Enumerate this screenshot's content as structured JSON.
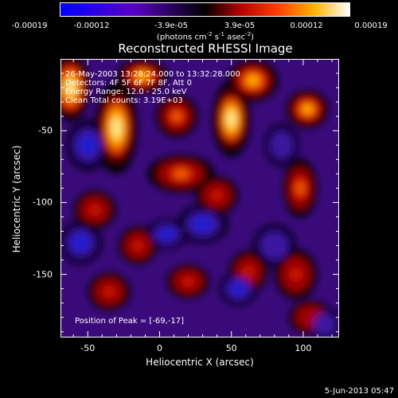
{
  "chart_data": {
    "type": "heatmap",
    "title": "Reconstructed RHESSI Image",
    "xlabel": "Heliocentric X (arcsec)",
    "ylabel": "Heliocentric Y (arcsec)",
    "xlim": [
      -69,
      125
    ],
    "ylim": [
      -194,
      0
    ],
    "x_ticks": [
      -50,
      0,
      50,
      100
    ],
    "y_ticks": [
      -50,
      -100,
      -150
    ],
    "colorbar": {
      "ticks": [
        "-0.00019",
        "-0.00012",
        "-3.9e-05",
        "3.9e-05",
        "0.00012",
        "0.00019"
      ],
      "unit_prefix": "(photons cm",
      "unit_sup1": "-2",
      "unit_mid": " s",
      "unit_sup2": "-1",
      "unit_mid2": " asec",
      "unit_sup3": "-2",
      "unit_suffix": ")",
      "range": [
        -0.00019,
        0.00019
      ]
    },
    "info": [
      "26-May-2003 13:28:24.000 to 13:32:28.000",
      "Detectors: 4F 5F 6F 7F 8F, Att 0",
      "Energy Range: 12.0 - 25.0 keV",
      "Clean     Total counts: 3.19E+03"
    ],
    "peak_note": "Position of Peak = [-69,-17]",
    "peak": [
      -69,
      -17
    ],
    "sources": [
      {
        "x": -62,
        "y": -20,
        "a": 1.0,
        "sx": 9,
        "sy": 16
      },
      {
        "x": -30,
        "y": -48,
        "a": 0.95,
        "sx": 10,
        "sy": 22
      },
      {
        "x": -12,
        "y": -12,
        "a": 0.8,
        "sx": 12,
        "sy": 8
      },
      {
        "x": 12,
        "y": -40,
        "a": 0.7,
        "sx": 10,
        "sy": 10
      },
      {
        "x": 50,
        "y": -42,
        "a": 0.98,
        "sx": 9,
        "sy": 18
      },
      {
        "x": 65,
        "y": -15,
        "a": 0.85,
        "sx": 12,
        "sy": 10
      },
      {
        "x": 103,
        "y": -35,
        "a": 0.8,
        "sx": 10,
        "sy": 9
      },
      {
        "x": 98,
        "y": -90,
        "a": 0.7,
        "sx": 8,
        "sy": 14
      },
      {
        "x": 15,
        "y": -80,
        "a": 0.7,
        "sx": 16,
        "sy": 9
      },
      {
        "x": 40,
        "y": -95,
        "a": 0.55,
        "sx": 10,
        "sy": 9
      },
      {
        "x": -45,
        "y": -105,
        "a": 0.45,
        "sx": 10,
        "sy": 9
      },
      {
        "x": -15,
        "y": -130,
        "a": 0.55,
        "sx": 9,
        "sy": 9
      },
      {
        "x": 20,
        "y": -155,
        "a": 0.5,
        "sx": 10,
        "sy": 8
      },
      {
        "x": 62,
        "y": -148,
        "a": 0.5,
        "sx": 9,
        "sy": 10
      },
      {
        "x": 95,
        "y": -150,
        "a": 0.55,
        "sx": 10,
        "sy": 12
      },
      {
        "x": -35,
        "y": -162,
        "a": 0.45,
        "sx": 10,
        "sy": 9
      },
      {
        "x": 105,
        "y": -180,
        "a": 0.4,
        "sx": 10,
        "sy": 8
      },
      {
        "x": -50,
        "y": -60,
        "a": -0.55,
        "sx": 10,
        "sy": 12
      },
      {
        "x": 30,
        "y": -115,
        "a": -0.5,
        "sx": 12,
        "sy": 9
      },
      {
        "x": -55,
        "y": -128,
        "a": -0.55,
        "sx": 10,
        "sy": 10
      },
      {
        "x": 5,
        "y": -122,
        "a": -0.5,
        "sx": 10,
        "sy": 7
      },
      {
        "x": 55,
        "y": -160,
        "a": -0.45,
        "sx": 9,
        "sy": 8
      },
      {
        "x": 85,
        "y": -60,
        "a": -0.4,
        "sx": 8,
        "sy": 10
      },
      {
        "x": 80,
        "y": -130,
        "a": -0.4,
        "sx": 10,
        "sy": 10
      },
      {
        "x": 115,
        "y": -185,
        "a": -0.35,
        "sx": 8,
        "sy": 8
      }
    ]
  },
  "footer": {
    "date": "5-Jun-2013 05:47"
  }
}
